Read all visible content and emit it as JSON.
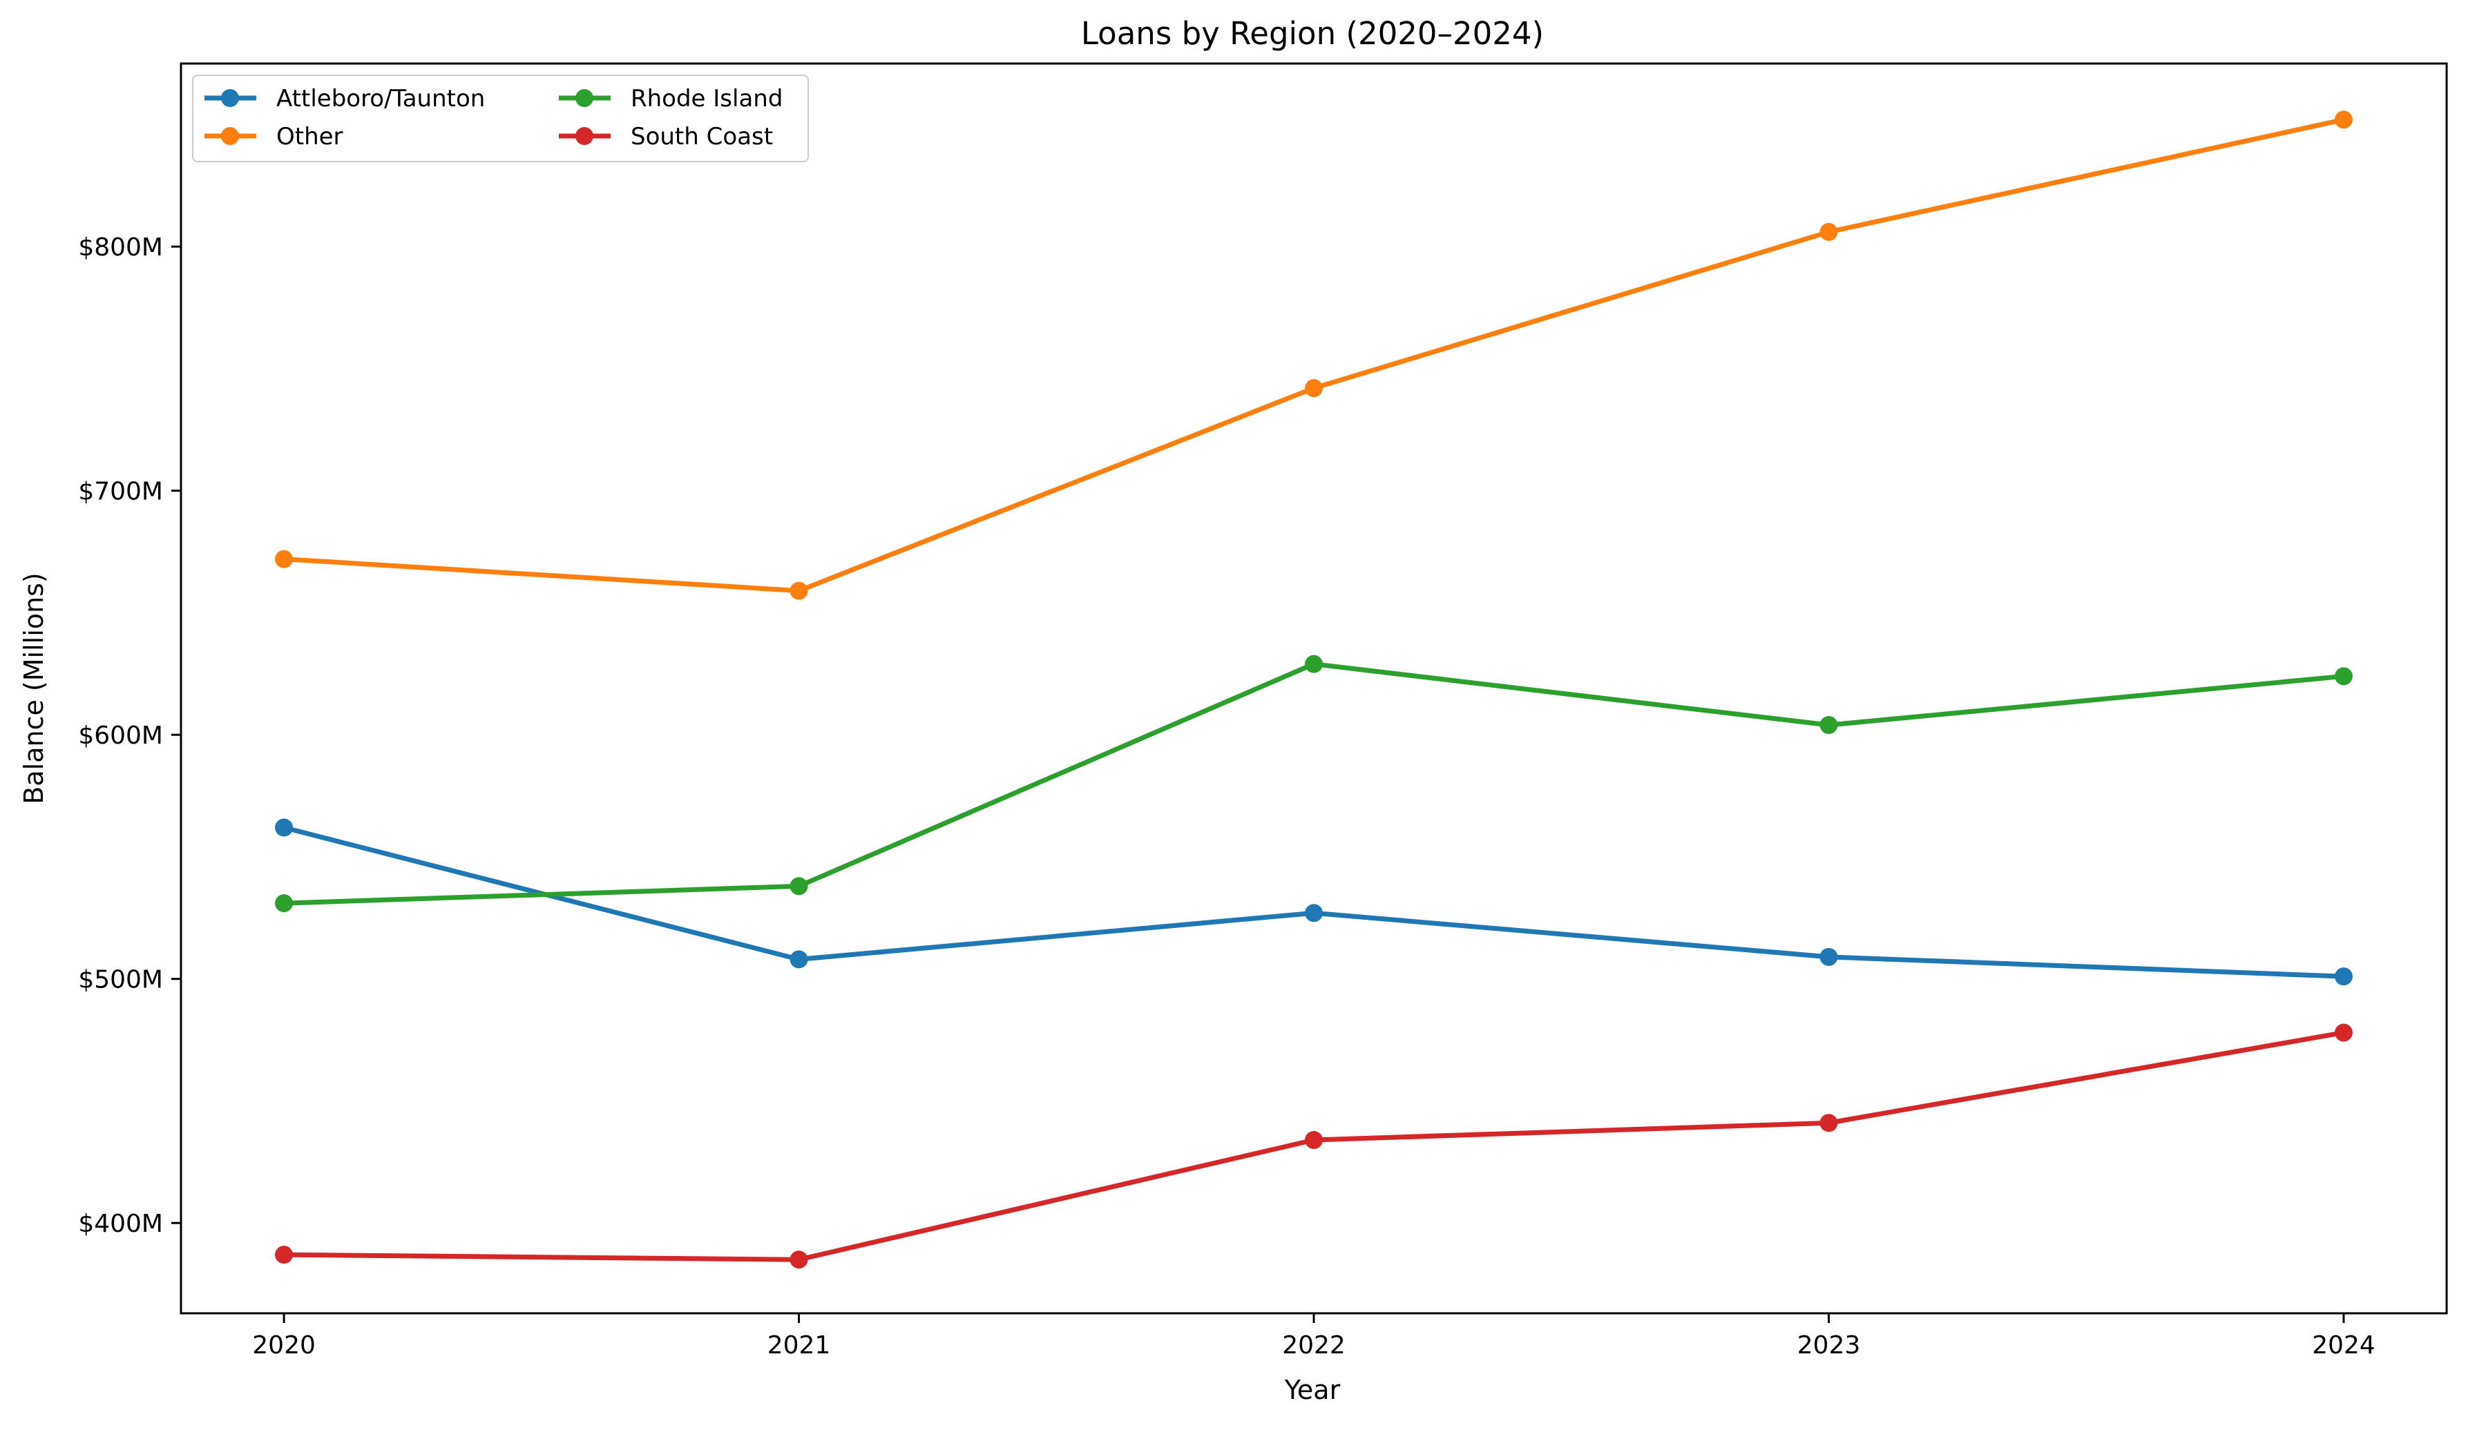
{
  "chart_data": {
    "type": "line",
    "title": "Loans by Region (2020–2024)",
    "xlabel": "Year",
    "ylabel": "Balance (Millions)",
    "x": [
      2020,
      2021,
      2022,
      2023,
      2024
    ],
    "x_tick_labels": [
      "2020",
      "2021",
      "2022",
      "2023",
      "2024"
    ],
    "y_ticks": [
      400,
      500,
      600,
      700,
      800
    ],
    "y_tick_labels": [
      "$400M",
      "$500M",
      "$600M",
      "$700M",
      "$800M"
    ],
    "ylim": [
      363,
      875
    ],
    "xlim": [
      2019.8,
      2024.2
    ],
    "grid": false,
    "legend_position": "upper-left",
    "legend_columns": 2,
    "series": [
      {
        "name": "Attleboro/Taunton",
        "color": "#1f77b4",
        "values": [
          562,
          508,
          527,
          509,
          501
        ]
      },
      {
        "name": "Other",
        "color": "#ff7f0e",
        "values": [
          672,
          659,
          742,
          806,
          852
        ]
      },
      {
        "name": "Rhode Island",
        "color": "#2ca02c",
        "values": [
          531,
          538,
          629,
          604,
          624
        ]
      },
      {
        "name": "South Coast",
        "color": "#d62728",
        "values": [
          387,
          385,
          434,
          441,
          478
        ]
      }
    ]
  }
}
